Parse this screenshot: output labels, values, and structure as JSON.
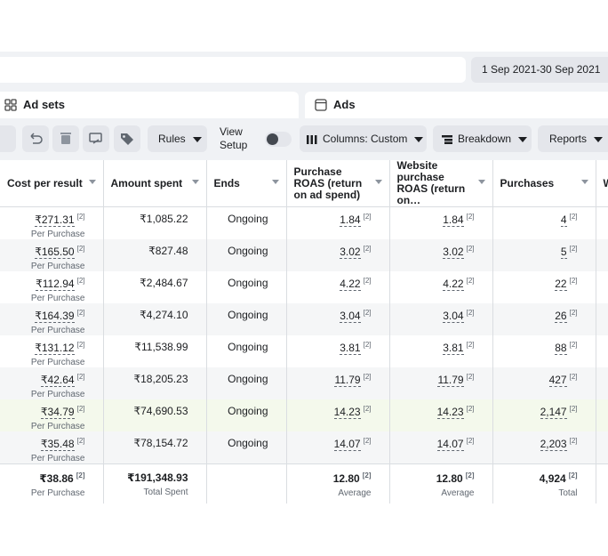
{
  "top_bar": {
    "date_range": "1 Sep 2021-30 Sep 2021"
  },
  "tabs": [
    "Ad sets",
    "Ads"
  ],
  "toolbar": {
    "rules": "Rules",
    "view_setup": "View Setup",
    "columns": "Columns: Custom",
    "breakdown": "Breakdown",
    "reports": "Reports"
  },
  "table": {
    "columns": [
      "Cost per result",
      "Amount spent",
      "Ends",
      "Purchase ROAS (return on ad spend)",
      "Website purchase ROAS (return on…",
      "Purchases",
      "W p"
    ],
    "rows": [
      [
        {
          "text": "₹271.31",
          "note": "[2]",
          "sub": "Per Purchase"
        },
        {
          "text": "₹1,085.22"
        },
        {
          "text": "Ongoing"
        },
        {
          "text": "1.84",
          "note": "[2]"
        },
        {
          "text": "1.84",
          "note": "[2]"
        },
        {
          "text": "4",
          "note": "[2]"
        }
      ],
      [
        {
          "text": "₹165.50",
          "note": "[2]",
          "sub": "Per Purchase"
        },
        {
          "text": "₹827.48"
        },
        {
          "text": "Ongoing"
        },
        {
          "text": "3.02",
          "note": "[2]"
        },
        {
          "text": "3.02",
          "note": "[2]"
        },
        {
          "text": "5",
          "note": "[2]"
        }
      ],
      [
        {
          "text": "₹112.94",
          "note": "[2]",
          "sub": "Per Purchase"
        },
        {
          "text": "₹2,484.67"
        },
        {
          "text": "Ongoing"
        },
        {
          "text": "4.22",
          "note": "[2]"
        },
        {
          "text": "4.22",
          "note": "[2]"
        },
        {
          "text": "22",
          "note": "[2]"
        }
      ],
      [
        {
          "text": "₹164.39",
          "note": "[2]",
          "sub": "Per Purchase"
        },
        {
          "text": "₹4,274.10"
        },
        {
          "text": "Ongoing"
        },
        {
          "text": "3.04",
          "note": "[2]"
        },
        {
          "text": "3.04",
          "note": "[2]"
        },
        {
          "text": "26",
          "note": "[2]"
        }
      ],
      [
        {
          "text": "₹131.12",
          "note": "[2]",
          "sub": "Per Purchase"
        },
        {
          "text": "₹11,538.99"
        },
        {
          "text": "Ongoing"
        },
        {
          "text": "3.81",
          "note": "[2]"
        },
        {
          "text": "3.81",
          "note": "[2]"
        },
        {
          "text": "88",
          "note": "[2]"
        }
      ],
      [
        {
          "text": "₹42.64",
          "note": "[2]",
          "sub": "Per Purchase"
        },
        {
          "text": "₹18,205.23"
        },
        {
          "text": "Ongoing"
        },
        {
          "text": "11.79",
          "note": "[2]"
        },
        {
          "text": "11.79",
          "note": "[2]"
        },
        {
          "text": "427",
          "note": "[2]"
        }
      ],
      [
        {
          "text": "₹34.79",
          "note": "[2]",
          "sub": "Per Purchase"
        },
        {
          "text": "₹74,690.53"
        },
        {
          "text": "Ongoing"
        },
        {
          "text": "14.23",
          "note": "[2]"
        },
        {
          "text": "14.23",
          "note": "[2]"
        },
        {
          "text": "2,147",
          "note": "[2]"
        }
      ],
      [
        {
          "text": "₹35.48",
          "note": "[2]",
          "sub": "Per Purchase"
        },
        {
          "text": "₹78,154.72"
        },
        {
          "text": "Ongoing"
        },
        {
          "text": "14.07",
          "note": "[2]"
        },
        {
          "text": "14.07",
          "note": "[2]"
        },
        {
          "text": "2,203",
          "note": "[2]"
        }
      ]
    ],
    "totals": [
      {
        "text": "₹38.86",
        "note": "[2]",
        "sub": "Per Purchase"
      },
      {
        "text": "₹191,348.93",
        "sub": "Total Spent"
      },
      {},
      {
        "text": "12.80",
        "note": "[2]",
        "sub": "Average"
      },
      {
        "text": "12.80",
        "note": "[2]",
        "sub": "Average"
      },
      {
        "text": "4,924",
        "note": "[2]",
        "sub": "Total"
      }
    ]
  }
}
